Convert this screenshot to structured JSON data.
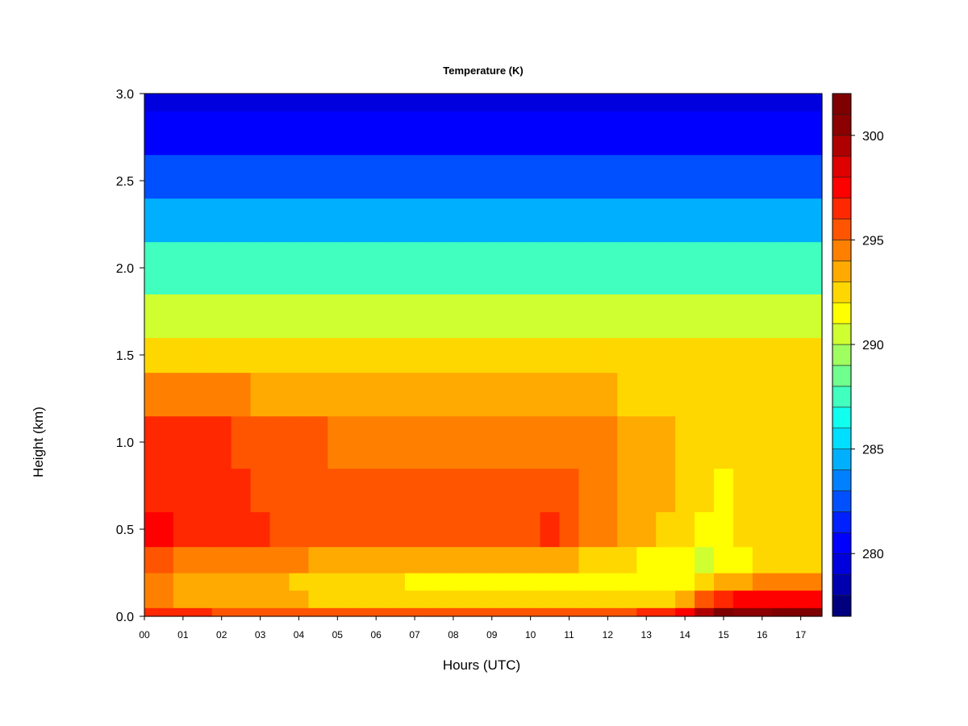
{
  "chart_data": {
    "type": "heatmap",
    "title": "Temperature (K)",
    "xlabel": "Hours (UTC)",
    "ylabel": "Height (km)",
    "xlim": [
      0,
      17.55
    ],
    "ylim": [
      0.0,
      3.0
    ],
    "x_ticks": [
      0,
      1,
      2,
      3,
      4,
      5,
      6,
      7,
      8,
      9,
      10,
      11,
      12,
      13,
      14,
      15,
      16,
      17
    ],
    "x_tick_labels": [
      "00",
      "01",
      "02",
      "03",
      "04",
      "05",
      "06",
      "07",
      "08",
      "09",
      "10",
      "11",
      "12",
      "13",
      "14",
      "15",
      "16",
      "17"
    ],
    "y_ticks": [
      0.0,
      0.5,
      1.0,
      1.5,
      2.0,
      2.5,
      3.0
    ],
    "y_tick_labels": [
      "0.0",
      "0.5",
      "1.0",
      "1.5",
      "2.0",
      "2.5",
      "3.0"
    ],
    "colorbar": {
      "range": [
        277,
        302
      ],
      "step": 1,
      "ticks": [
        280,
        285,
        290,
        295,
        300
      ],
      "tick_labels": [
        "280",
        "285",
        "290",
        "295",
        "300"
      ],
      "colors": [
        "#00007F",
        "#0000AF",
        "#0000DF",
        "#0000FF",
        "#0020FF",
        "#0050FF",
        "#0080FF",
        "#00B0FF",
        "#00DFFF",
        "#10FFEF",
        "#40FFBF",
        "#70FF8F",
        "#A0FF60",
        "#CFFF30",
        "#FFFF00",
        "#FFD700",
        "#FFAA00",
        "#FF8000",
        "#FF5500",
        "#FF2800",
        "#FF0000",
        "#DF0000",
        "#AF0000",
        "#8B0000",
        "#7F0000"
      ]
    },
    "time_hours": [
      0,
      0.5,
      1,
      1.5,
      2,
      2.5,
      3,
      3.5,
      4,
      4.5,
      5,
      5.5,
      6,
      6.5,
      7,
      7.5,
      8,
      8.5,
      9,
      9.5,
      10,
      10.5,
      11,
      11.5,
      12,
      12.5,
      13,
      13.5,
      14,
      14.5,
      15,
      15.5,
      16,
      16.5,
      17,
      17.55
    ],
    "height_km": [
      0.0,
      0.1,
      0.2,
      0.3,
      0.5,
      0.7,
      1.0,
      1.3,
      1.5,
      1.7,
      2.0,
      2.3,
      2.5,
      2.8,
      3.0
    ],
    "temperature_K": [
      [
        296.5,
        296.5,
        296.0,
        296.0,
        295.8,
        295.5,
        295.5,
        295.0,
        295.0,
        295.0,
        295.0,
        295.0,
        295.0,
        295.0,
        295.0,
        295.0,
        295.0,
        295.0,
        295.0,
        295.0,
        295.0,
        295.0,
        295.0,
        295.0,
        295.0,
        295.5,
        296.0,
        296.5,
        297.5,
        299.0,
        301.0,
        300.5,
        300.5,
        301.0,
        301.0,
        301.0
      ],
      [
        294.0,
        294.0,
        293.5,
        293.5,
        293.5,
        293.0,
        293.0,
        293.0,
        293.0,
        292.5,
        292.5,
        292.5,
        292.5,
        292.5,
        292.5,
        292.5,
        292.5,
        292.5,
        292.5,
        292.5,
        292.5,
        292.5,
        292.5,
        292.0,
        292.0,
        292.0,
        292.0,
        292.5,
        293.5,
        295.0,
        296.5,
        297.0,
        297.5,
        297.5,
        297.5,
        297.5
      ],
      [
        294.0,
        294.0,
        293.5,
        293.5,
        293.5,
        293.0,
        293.0,
        293.0,
        292.5,
        292.5,
        292.0,
        292.0,
        292.0,
        292.0,
        291.5,
        291.5,
        291.5,
        291.5,
        291.5,
        291.5,
        291.5,
        291.5,
        291.5,
        291.0,
        291.0,
        291.0,
        291.0,
        291.0,
        291.5,
        292.0,
        293.0,
        293.5,
        294.0,
        294.0,
        294.0,
        294.5
      ],
      [
        295.0,
        295.0,
        294.5,
        294.5,
        294.5,
        294.0,
        294.0,
        294.0,
        294.0,
        293.5,
        293.5,
        293.5,
        293.5,
        293.5,
        293.0,
        293.0,
        293.0,
        293.0,
        293.0,
        293.0,
        293.0,
        293.0,
        293.0,
        292.5,
        292.5,
        292.0,
        291.5,
        291.0,
        291.0,
        290.5,
        291.0,
        291.5,
        292.0,
        292.0,
        292.0,
        292.0
      ],
      [
        297.0,
        297.0,
        296.5,
        296.5,
        296.5,
        296.0,
        296.0,
        295.5,
        295.5,
        295.5,
        295.5,
        295.5,
        295.5,
        295.5,
        295.5,
        295.5,
        295.5,
        295.5,
        295.5,
        295.5,
        295.5,
        296.0,
        295.5,
        294.5,
        294.5,
        293.5,
        293.0,
        292.5,
        292.0,
        291.5,
        291.0,
        292.0,
        292.5,
        292.5,
        292.5,
        292.5
      ],
      [
        296.5,
        296.5,
        296.5,
        296.5,
        296.5,
        296.0,
        295.5,
        295.5,
        295.5,
        295.5,
        295.0,
        295.5,
        295.5,
        295.0,
        295.0,
        295.0,
        295.0,
        295.0,
        295.0,
        295.0,
        295.5,
        295.5,
        295.0,
        294.5,
        294.5,
        293.5,
        293.0,
        293.0,
        292.5,
        292.0,
        291.5,
        292.0,
        292.5,
        292.5,
        292.5,
        292.5
      ],
      [
        296.0,
        296.0,
        296.0,
        296.0,
        296.0,
        295.5,
        295.0,
        295.0,
        295.0,
        295.0,
        294.5,
        294.5,
        294.5,
        294.5,
        294.5,
        294.5,
        294.5,
        294.5,
        294.5,
        294.5,
        294.5,
        294.5,
        294.5,
        294.5,
        294.5,
        293.5,
        293.0,
        293.0,
        292.5,
        292.0,
        292.0,
        292.0,
        292.5,
        292.5,
        292.5,
        292.5
      ],
      [
        294.5,
        294.5,
        294.5,
        294.5,
        294.5,
        294.0,
        293.5,
        293.5,
        293.5,
        293.5,
        293.5,
        293.5,
        293.5,
        293.5,
        293.5,
        293.5,
        293.5,
        293.5,
        293.5,
        293.5,
        293.5,
        293.5,
        293.5,
        293.0,
        293.0,
        292.5,
        292.5,
        292.5,
        292.0,
        292.0,
        292.0,
        292.0,
        292.0,
        292.0,
        292.0,
        292.0
      ],
      [
        292.5,
        292.5,
        292.5,
        292.5,
        292.5,
        292.5,
        292.5,
        292.5,
        292.5,
        292.5,
        292.5,
        292.5,
        292.5,
        292.5,
        292.5,
        292.5,
        292.5,
        292.5,
        292.5,
        292.5,
        292.5,
        292.5,
        292.5,
        292.5,
        292.5,
        292.0,
        292.0,
        292.0,
        292.0,
        292.0,
        292.0,
        292.0,
        292.0,
        292.0,
        292.0,
        292.0
      ],
      [
        290.5,
        290.5,
        290.5,
        290.5,
        290.5,
        290.5,
        290.5,
        290.5,
        290.5,
        290.5,
        290.5,
        290.5,
        290.5,
        290.5,
        290.5,
        290.5,
        290.5,
        290.5,
        290.5,
        290.5,
        290.5,
        290.5,
        290.5,
        290.5,
        290.5,
        290.5,
        290.5,
        290.5,
        290.5,
        290.5,
        290.5,
        290.5,
        290.5,
        290.5,
        290.5,
        290.5
      ],
      [
        287.5,
        287.5,
        287.5,
        287.5,
        287.5,
        287.5,
        287.5,
        287.5,
        287.5,
        287.5,
        287.5,
        287.5,
        287.5,
        287.5,
        287.5,
        287.5,
        287.5,
        287.5,
        287.5,
        287.5,
        287.5,
        287.5,
        287.5,
        287.5,
        287.5,
        287.5,
        287.5,
        287.5,
        287.5,
        287.5,
        287.5,
        287.5,
        287.5,
        287.5,
        287.5,
        287.5
      ],
      [
        284.5,
        284.5,
        284.5,
        284.5,
        284.5,
        284.5,
        284.5,
        284.5,
        284.5,
        284.5,
        284.5,
        284.5,
        284.5,
        284.5,
        284.5,
        284.5,
        284.5,
        284.5,
        284.5,
        284.5,
        284.5,
        284.5,
        284.5,
        284.5,
        284.5,
        284.5,
        284.5,
        284.5,
        284.5,
        284.5,
        284.5,
        284.5,
        284.5,
        284.5,
        284.5,
        284.5
      ],
      [
        282.5,
        282.5,
        282.5,
        282.5,
        282.5,
        282.5,
        282.5,
        282.5,
        282.5,
        282.5,
        282.5,
        282.5,
        282.5,
        282.5,
        282.5,
        282.5,
        282.5,
        282.5,
        282.5,
        282.5,
        282.5,
        282.5,
        282.5,
        282.5,
        282.5,
        282.5,
        282.5,
        282.5,
        282.5,
        282.5,
        282.5,
        282.5,
        282.5,
        282.5,
        282.5,
        282.5
      ],
      [
        280.5,
        280.5,
        280.5,
        280.5,
        280.5,
        280.5,
        280.5,
        280.5,
        280.5,
        280.5,
        280.5,
        280.5,
        280.5,
        280.5,
        280.5,
        280.5,
        280.5,
        280.5,
        280.5,
        280.5,
        280.5,
        280.5,
        280.5,
        280.5,
        280.5,
        280.5,
        280.5,
        280.5,
        280.5,
        280.5,
        280.5,
        280.5,
        280.5,
        280.5,
        280.5,
        280.5
      ],
      [
        279.5,
        279.5,
        279.5,
        279.5,
        279.5,
        279.5,
        279.5,
        279.5,
        279.5,
        279.5,
        279.5,
        279.5,
        279.5,
        279.5,
        279.5,
        279.5,
        279.5,
        279.5,
        279.5,
        279.5,
        279.5,
        279.5,
        279.5,
        279.5,
        279.5,
        279.5,
        279.5,
        279.5,
        279.5,
        279.5,
        279.5,
        279.5,
        279.5,
        279.5,
        279.5,
        279.5
      ]
    ]
  }
}
